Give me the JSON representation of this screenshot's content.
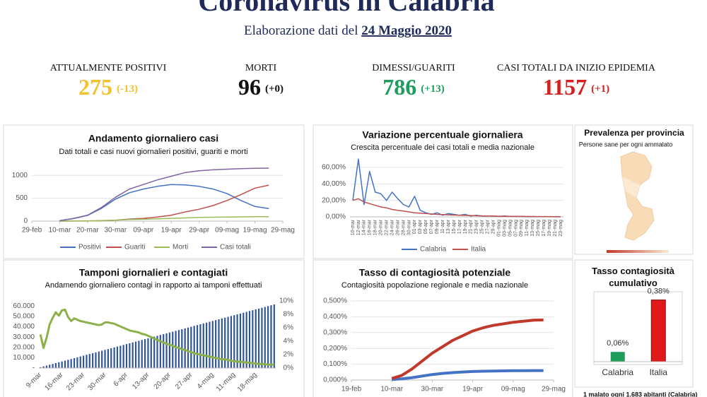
{
  "header": {
    "title": "Coronavirus in Calabria",
    "subtitle": "Elaborazione dati del",
    "date": "24 Maggio 2020"
  },
  "kpis": [
    {
      "label": "ATTUALMENTE POSITIVI",
      "value": 275,
      "delta": "(-13)",
      "color": "#f2c12e"
    },
    {
      "label": "MORTI",
      "value": 96,
      "delta": "(+0)",
      "color": "#111111"
    },
    {
      "label": "DIMESSI/GUARITI",
      "value": 786,
      "delta": "(+13)",
      "color": "#1f9d5c"
    },
    {
      "label": "CASI TOTALI DA INIZIO EPIDEMIA",
      "value": 1157,
      "delta": "(+1)",
      "color": "#d42020"
    }
  ],
  "map_panel": {
    "title": "Prevalenza per provincia",
    "subtitle": "Persone sane per ogni ammalato"
  },
  "footer": "1 malato ogni 1.683 abitanti (Calabria)",
  "chart_data": [
    {
      "type": "line",
      "title": "Andamento giornaliero casi",
      "subtitle": "Dati totali e casi nuovi giornalieri positivi, guariti e morti",
      "x": [
        10,
        15,
        20,
        25,
        30,
        35,
        40,
        45,
        50,
        55,
        60,
        65,
        70,
        75,
        80,
        85
      ],
      "xlim": [
        0,
        90
      ],
      "xticks": [
        {
          "value": 0,
          "label": "29-feb"
        },
        {
          "value": 10,
          "label": "10-mar"
        },
        {
          "value": 20,
          "label": "20-mar"
        },
        {
          "value": 30,
          "label": "30-mar"
        },
        {
          "value": 40,
          "label": "09-apr"
        },
        {
          "value": 50,
          "label": "19-apr"
        },
        {
          "value": 60,
          "label": "29-apr"
        },
        {
          "value": 70,
          "label": "09-mag"
        },
        {
          "value": 80,
          "label": "19-mag"
        },
        {
          "value": 90,
          "label": "29-mag"
        }
      ],
      "ylim": [
        0,
        1250
      ],
      "yticks": [
        0,
        500,
        1000
      ],
      "grid": true,
      "legend": "bottom",
      "series": [
        {
          "name": "Positivi",
          "color": "#4472c4",
          "values": [
            10,
            55,
            125,
            280,
            480,
            620,
            700,
            760,
            800,
            790,
            760,
            700,
            600,
            450,
            320,
            275
          ]
        },
        {
          "name": "Guariti",
          "color": "#c0504d",
          "values": [
            0,
            2,
            4,
            8,
            20,
            45,
            60,
            90,
            130,
            200,
            260,
            340,
            450,
            580,
            720,
            786
          ]
        },
        {
          "name": "Morti",
          "color": "#9bbb59",
          "values": [
            0,
            3,
            1,
            12,
            20,
            35,
            40,
            50,
            60,
            70,
            80,
            85,
            90,
            92,
            95,
            96
          ]
        },
        {
          "name": "Casi totali",
          "color": "#8064a2",
          "values": [
            10,
            60,
            130,
            300,
            520,
            700,
            800,
            900,
            980,
            1060,
            1100,
            1120,
            1135,
            1145,
            1155,
            1157
          ]
        }
      ]
    },
    {
      "type": "line",
      "title": "Variazione percentuale giornaliera",
      "subtitle": "Crescita percentuale dei casi totali e media nazionale",
      "categories": [
        "10-mar",
        "12-mar",
        "14-mar",
        "16-mar",
        "18-mar",
        "20-mar",
        "22-mar",
        "24-mar",
        "26-mar",
        "28-mar",
        "30-mar",
        "01-apr",
        "03-apr",
        "05-apr",
        "07-apr",
        "09-apr",
        "11-apr",
        "13-apr",
        "15-apr",
        "17-apr",
        "19-apr",
        "21-apr",
        "23-apr",
        "25-apr",
        "27-apr",
        "29-apr",
        "01-mag",
        "03-mag",
        "05-mag",
        "07-mag",
        "09-mag",
        "11-mag",
        "13-mag",
        "15-mag",
        "17-mag",
        "19-mag",
        "21-mag",
        "23-mag"
      ],
      "ylim": [
        0,
        75
      ],
      "yticks": [
        {
          "value": 0,
          "label": "0,00%"
        },
        {
          "value": 20,
          "label": "20,00%"
        },
        {
          "value": 40,
          "label": "40,00%"
        },
        {
          "value": 60,
          "label": "60,00%"
        }
      ],
      "grid": true,
      "legend": "bottom",
      "series": [
        {
          "name": "Calabria",
          "color": "#4472c4",
          "values": [
            20,
            70,
            15,
            55,
            30,
            28,
            20,
            30,
            22,
            15,
            12,
            25,
            8,
            5,
            3,
            5,
            2,
            4,
            3,
            2,
            3,
            1,
            2,
            1,
            1,
            1,
            0.5,
            1,
            0.5,
            0.5,
            0.5,
            0.3,
            0.3,
            0.2,
            0.2,
            0.2,
            0.1,
            0.1
          ]
        },
        {
          "name": "Italia",
          "color": "#c0504d",
          "values": [
            20,
            22,
            18,
            16,
            14,
            12,
            11,
            9,
            8,
            7,
            6,
            5,
            4.5,
            4,
            3.5,
            3,
            2.8,
            2.5,
            2.2,
            2,
            1.8,
            1.6,
            1.4,
            1.2,
            1,
            0.9,
            0.8,
            0.7,
            0.6,
            0.5,
            0.5,
            0.4,
            0.4,
            0.3,
            0.3,
            0.3,
            0.2,
            0.2
          ]
        }
      ]
    },
    {
      "type": "combo",
      "title": "Tamponi giornalieri e contagiati",
      "subtitle": "Andamendo giornaliero contagi in rapporto ai tamponi effettuati",
      "categories": [
        "9-mar",
        null,
        null,
        null,
        null,
        null,
        null,
        "16-mar",
        null,
        null,
        null,
        null,
        null,
        null,
        "23-mar",
        null,
        null,
        null,
        null,
        null,
        null,
        "30-mar",
        null,
        null,
        null,
        null,
        null,
        null,
        "6-apr",
        null,
        null,
        null,
        null,
        null,
        null,
        "13-apr",
        null,
        null,
        null,
        null,
        null,
        null,
        "20-apr",
        null,
        null,
        null,
        null,
        null,
        null,
        "27-apr",
        null,
        null,
        null,
        null,
        null,
        null,
        "4-mag",
        null,
        null,
        null,
        null,
        null,
        null,
        "11-mag",
        null,
        null,
        null,
        null,
        null,
        null,
        "18-mag",
        null,
        null,
        null,
        null,
        null,
        null
      ],
      "ylim": [
        0,
        65000
      ],
      "yticks": [
        {
          "value": 0,
          "label": "-"
        },
        {
          "value": 10000,
          "label": "10.000"
        },
        {
          "value": 20000,
          "label": "20.000"
        },
        {
          "value": 30000,
          "label": "30.000"
        },
        {
          "value": 40000,
          "label": "40.000"
        },
        {
          "value": 50000,
          "label": "50.000"
        },
        {
          "value": 60000,
          "label": "60.000"
        }
      ],
      "y2lim": [
        0,
        10
      ],
      "y2ticks": [
        {
          "value": 0,
          "label": "0%"
        },
        {
          "value": 2,
          "label": "2%"
        },
        {
          "value": 4,
          "label": "4%"
        },
        {
          "value": 6,
          "label": "6%"
        },
        {
          "value": 8,
          "label": "8%"
        },
        {
          "value": 10,
          "label": "10%"
        }
      ],
      "series": [
        {
          "type": "bar",
          "color": "#2f5597",
          "values": [
            800,
            1600,
            2400,
            3200,
            4000,
            4800,
            5600,
            6400,
            7200,
            8000,
            8800,
            9600,
            10400,
            11200,
            12000,
            12800,
            13600,
            14400,
            15200,
            16000,
            16800,
            17600,
            18400,
            19200,
            20000,
            20800,
            21600,
            22400,
            23200,
            24000,
            24800,
            25600,
            26400,
            27200,
            28000,
            28800,
            29600,
            30400,
            31200,
            32000,
            32800,
            33600,
            34400,
            35200,
            36000,
            36800,
            37600,
            38400,
            39200,
            40000,
            40800,
            41600,
            42400,
            43200,
            44000,
            44800,
            45600,
            46400,
            47200,
            48000,
            48800,
            49600,
            50400,
            51200,
            52000,
            52800,
            53600,
            54400,
            55200,
            56000,
            56800,
            57600,
            58400,
            59200,
            60000,
            60800,
            61600
          ]
        },
        {
          "type": "line",
          "axis": "y2",
          "color": "#8db04a",
          "values": [
            5.0,
            3.0,
            4.5,
            6.5,
            7.5,
            8.3,
            7.8,
            8.6,
            8.7,
            7.6,
            7.0,
            7.4,
            7.2,
            7.0,
            6.9,
            6.8,
            6.7,
            6.6,
            6.5,
            6.4,
            6.5,
            6.8,
            6.8,
            6.7,
            6.6,
            6.4,
            6.2,
            6.0,
            5.8,
            5.6,
            5.5,
            5.4,
            5.3,
            5.1,
            5.0,
            4.8,
            4.6,
            4.4,
            4.2,
            4.0,
            3.8,
            3.6,
            3.5,
            3.3,
            3.1,
            3.0,
            2.8,
            2.7,
            2.5,
            2.4,
            2.2,
            2.1,
            2.0,
            1.9,
            1.8,
            1.7,
            1.6,
            1.5,
            1.4,
            1.3,
            1.3,
            1.2,
            1.1,
            1.0,
            1.0,
            0.9,
            0.9,
            0.8,
            0.8,
            0.7,
            0.7,
            0.6,
            0.6,
            0.6,
            0.5,
            0.5,
            0.5
          ]
        }
      ]
    },
    {
      "type": "line",
      "title": "Tasso di contagiosità potenziale",
      "subtitle": "Contagiosità popolazione regionale e media nazionale",
      "x": [
        20,
        25,
        30,
        35,
        40,
        45,
        50,
        55,
        60,
        65,
        70,
        75,
        80,
        85,
        90,
        95
      ],
      "xlim": [
        0,
        100
      ],
      "xticks": [
        {
          "value": 0,
          "label": "19-feb"
        },
        {
          "value": 20,
          "label": "10-mar"
        },
        {
          "value": 40,
          "label": "30-mar"
        },
        {
          "value": 60,
          "label": "19-apr"
        },
        {
          "value": 80,
          "label": "09-mag"
        },
        {
          "value": 100,
          "label": "29-mag"
        }
      ],
      "ylim": [
        0,
        0.5
      ],
      "yticks": [
        {
          "value": 0,
          "label": "0,000%"
        },
        {
          "value": 0.1,
          "label": "0,100%"
        },
        {
          "value": 0.2,
          "label": "0,200%"
        },
        {
          "value": 0.3,
          "label": "0,300%"
        },
        {
          "value": 0.4,
          "label": "0,400%"
        },
        {
          "value": 0.5,
          "label": "0,500%"
        }
      ],
      "grid": true,
      "line_width": 4,
      "series": [
        {
          "color": "#4472c4",
          "values": [
            0.003,
            0.008,
            0.015,
            0.025,
            0.035,
            0.042,
            0.047,
            0.051,
            0.054,
            0.056,
            0.057,
            0.058,
            0.059,
            0.059,
            0.06,
            0.06
          ]
        },
        {
          "color": "#c0392b",
          "values": [
            0.01,
            0.03,
            0.07,
            0.12,
            0.17,
            0.21,
            0.25,
            0.28,
            0.31,
            0.33,
            0.345,
            0.355,
            0.365,
            0.372,
            0.378,
            0.38
          ]
        }
      ]
    },
    {
      "type": "bar",
      "title": "Tasso contagiosità cumulativo",
      "categories": [
        "Calabria",
        "Italia"
      ],
      "values": [
        0.06,
        0.38
      ],
      "value_labels": [
        "0,06%",
        "0,38%"
      ],
      "colors": [
        "#1e9e5a",
        "#e01a1a"
      ],
      "ylim": [
        0,
        0.4
      ]
    }
  ]
}
